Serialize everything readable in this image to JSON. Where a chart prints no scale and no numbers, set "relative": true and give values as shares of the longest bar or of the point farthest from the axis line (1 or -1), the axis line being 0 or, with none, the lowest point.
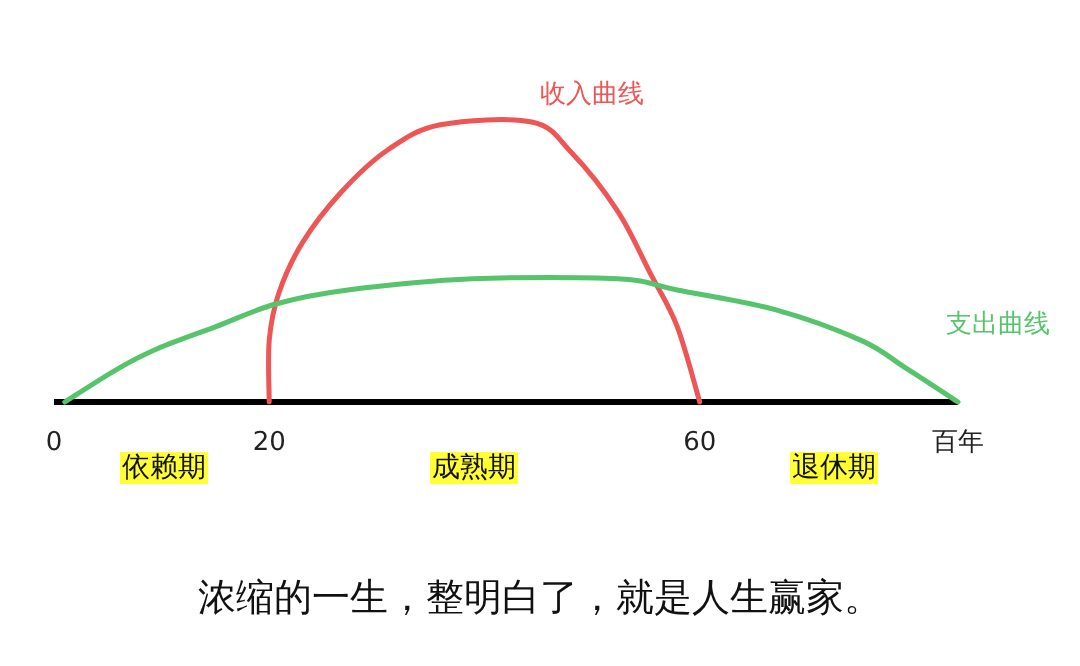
{
  "chart_data": {
    "type": "line",
    "relative": true,
    "xlim": [
      0,
      84
    ],
    "xticks": [
      0,
      20,
      60,
      {
        "value": 84,
        "label": "百年"
      }
    ],
    "grid": false,
    "marker": "none",
    "line_style": "solid",
    "series": [
      {
        "name": "收入曲线",
        "color": "#ee5555",
        "x": [
          20,
          20,
          20.9,
          23.1,
          26.7,
          31,
          35.9,
          44.4,
          48.1,
          52.4,
          55.4,
          57.9,
          60
        ],
        "values": [
          0,
          0.22,
          0.39,
          0.57,
          0.75,
          0.9,
          0.99,
          1,
          0.89,
          0.68,
          0.46,
          0.27,
          0
        ]
      },
      {
        "name": "支出曲线",
        "color": "#55c46a",
        "x": [
          1,
          6,
          9.6,
          15.1,
          20.6,
          27.3,
          38.9,
          52.4,
          57.9,
          67,
          75,
          79.2,
          84
        ],
        "values": [
          0,
          0.12,
          0.19,
          0.27,
          0.35,
          0.4,
          0.44,
          0.44,
          0.4,
          0.33,
          0.22,
          0.12,
          0
        ]
      }
    ],
    "annotations": [
      "依赖期",
      "成熟期",
      "退休期",
      "浓缩的一生，整明白了，就是人生赢家。"
    ]
  }
}
